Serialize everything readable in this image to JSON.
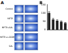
{
  "panels": {
    "a": {
      "label": "A",
      "rows": [
        "Control",
        "MPTP",
        "MPTP+SAL",
        "MPTP+L-DOPA",
        "SAL"
      ]
    },
    "b": {
      "label": "B"
    }
  },
  "chart_data": {
    "type": "bar",
    "categories": [
      null,
      null,
      null,
      null,
      null
    ],
    "values": [
      100,
      62,
      55,
      48,
      40
    ],
    "errors": [
      8,
      6,
      5,
      5,
      4
    ],
    "color": "#222222",
    "ylim": [
      0,
      150
    ],
    "yticks": [
      0,
      50,
      100,
      150
    ],
    "grid": false,
    "tick_labels": "y"
  }
}
